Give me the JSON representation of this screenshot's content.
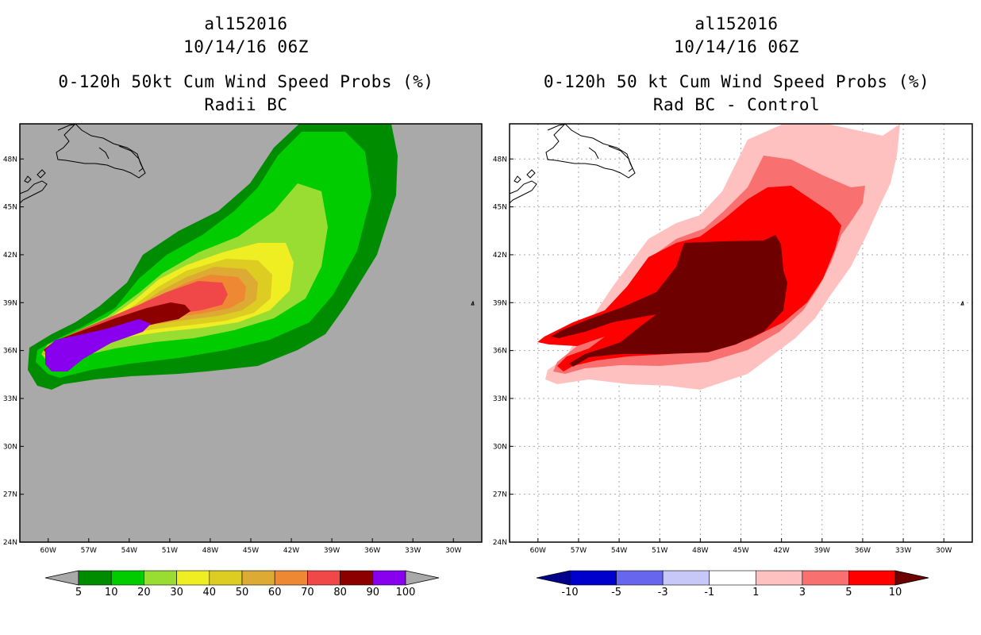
{
  "left_panel": {
    "title_line1": "al152016",
    "title_line2": "10/14/16 06Z",
    "title_line3": "0-120h 50kt Cum Wind Speed Probs (%)",
    "title_line4": "Radii BC",
    "background_color": "#a9a9a9",
    "colorbar": {
      "labels": [
        "5",
        "10",
        "20",
        "30",
        "40",
        "50",
        "60",
        "70",
        "80",
        "90",
        "100"
      ],
      "colors": [
        "#008c00",
        "#00cc00",
        "#99dd33",
        "#eeee22",
        "#ddcc22",
        "#ddaa33",
        "#ee8833",
        "#f04848",
        "#8c0000",
        "#8800ee"
      ],
      "under_color": "#a9a9a9",
      "over_color": "#a9a9a9"
    },
    "contour_levels": [
      5,
      10,
      20,
      30,
      40,
      50,
      60,
      70,
      80,
      90
    ]
  },
  "right_panel": {
    "title_line1": "al152016",
    "title_line2": "10/14/16 06Z",
    "title_line3": "0-120h 50 kt Cum Wind Speed Probs (%)",
    "title_line4": "Rad BC - Control",
    "background_color": "#ffffff",
    "colorbar": {
      "labels": [
        "-10",
        "-5",
        "-3",
        "-1",
        "1",
        "3",
        "5",
        "10"
      ],
      "colors": [
        "#0000cc",
        "#6666ee",
        "#c8c8f8",
        "#ffffff",
        "#ffc0c0",
        "#f87070",
        "#ff0000"
      ],
      "under_color": "#00008b",
      "over_color": "#6e0000"
    },
    "contour_levels": [
      1,
      3,
      5,
      10
    ]
  },
  "axes": {
    "lon_labels": [
      "60W",
      "57W",
      "54W",
      "51W",
      "48W",
      "45W",
      "42W",
      "39W",
      "36W",
      "33W",
      "30W"
    ],
    "lat_labels": [
      "48N",
      "45N",
      "42N",
      "39N",
      "36N",
      "33N",
      "30N",
      "27N",
      "24N"
    ],
    "lon_values": [
      -60,
      -57,
      -54,
      -51,
      -48,
      -45,
      -42,
      -39,
      -36,
      -33,
      -30
    ],
    "lat_values": [
      48,
      45,
      42,
      39,
      36,
      33,
      30,
      27,
      24
    ],
    "lon_range": [
      -62.1,
      -27.9
    ],
    "lat_range": [
      24,
      50.2
    ]
  }
}
